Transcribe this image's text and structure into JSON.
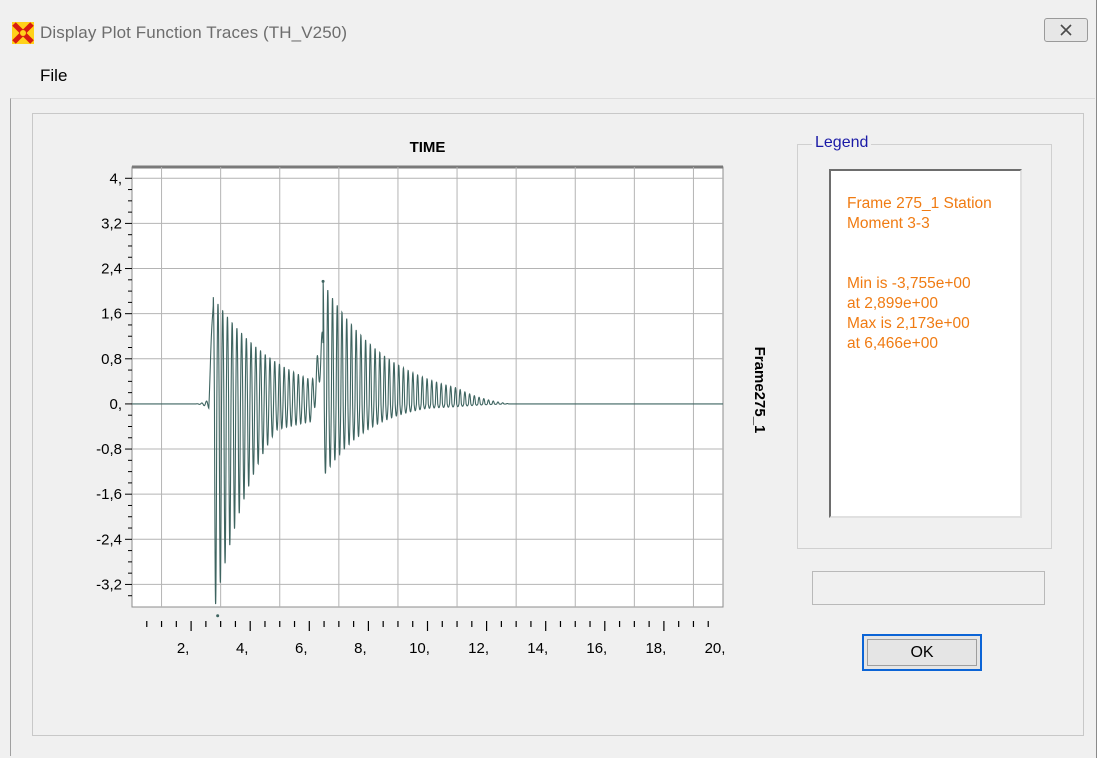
{
  "window": {
    "title": "Display Plot Function Traces  (TH_V250)",
    "app_icon": "sap2000-x-icon",
    "close_icon": "close-icon"
  },
  "menu": {
    "file_label": "File"
  },
  "legend": {
    "caption": "Legend",
    "lines": [
      "Frame 275_1  Station",
      "Moment 3-3",
      "",
      "Min is -3,755e+00",
      "at 2,899e+00",
      "Max is 2,173e+00",
      "at 6,466e+00"
    ]
  },
  "status_field": {
    "value": ""
  },
  "ok_button": {
    "label": "OK"
  },
  "colors": {
    "trace": "#3e6460",
    "legend_text": "#f07b12",
    "legend_caption": "#1a1aa6",
    "ok_focus": "#0b64d6"
  },
  "chart_data": {
    "type": "line",
    "title": "TIME",
    "ylabel": "Frame275_1",
    "xlabel": "",
    "xlim": [
      0,
      20
    ],
    "ylim": [
      -3.6,
      4.2
    ],
    "grid": true,
    "x_ticks": [
      2,
      4,
      6,
      8,
      10,
      12,
      14,
      16,
      18,
      20
    ],
    "x_tick_labels": [
      "2,",
      "4,",
      "6,",
      "8,",
      "10,",
      "12,",
      "14,",
      "16,",
      "18,",
      "20,"
    ],
    "y_ticks": [
      4,
      3.2,
      2.4,
      1.6,
      0.8,
      0,
      -0.8,
      -1.6,
      -2.4,
      -3.2
    ],
    "y_tick_labels": [
      "4,",
      "3,2",
      "2,4",
      "1,6",
      "0,8",
      "0,",
      "-0,8",
      "-1,6",
      "-2,4",
      "-3,2"
    ],
    "series": [
      {
        "name": "Frame 275_1",
        "min": {
          "y": -3.755,
          "x": 2.899
        },
        "max": {
          "y": 2.173,
          "x": 6.466
        },
        "bursts": [
          {
            "t0": 2.0,
            "t_peak": 2.75,
            "amp_pos": 1.9,
            "amp_neg": -3.75,
            "decay": 0.33,
            "period": 0.16
          },
          {
            "t0": 6.1,
            "t_peak": 6.466,
            "amp_pos": 2.17,
            "amp_neg": -1.3,
            "decay": 0.45,
            "period": 0.16
          }
        ],
        "trace_end_x": 12.8
      }
    ]
  }
}
